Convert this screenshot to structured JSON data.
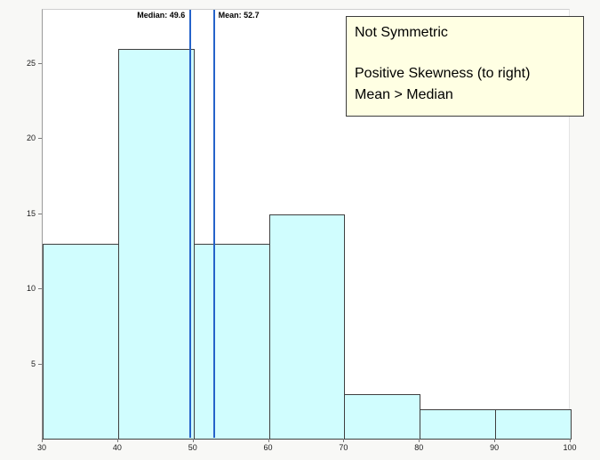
{
  "chart_data": {
    "type": "bar",
    "subtype": "histogram",
    "title": "",
    "xlabel": "",
    "ylabel": "",
    "bin_edges": [
      30,
      40,
      50,
      60,
      70,
      80,
      90,
      100
    ],
    "counts": [
      13,
      26,
      13,
      15,
      3,
      2,
      2
    ],
    "x_ticks": [
      30,
      40,
      50,
      60,
      70,
      80,
      90,
      100
    ],
    "y_ticks": [
      5,
      10,
      15,
      20,
      25
    ],
    "x_range": [
      30,
      100
    ],
    "y_range": [
      0,
      28.6
    ],
    "grid": false,
    "bar_fill": "#d0fdfe",
    "bar_border": "#3f3f3f",
    "reference_lines": [
      {
        "name": "median",
        "label": "Median: 49.6",
        "value": 49.6,
        "color": "#2563c9",
        "label_side": "left"
      },
      {
        "name": "mean",
        "label": "Mean: 52.7",
        "value": 52.7,
        "color": "#2563c9",
        "label_side": "right"
      }
    ]
  },
  "annotation": {
    "bg": "#ffffe3",
    "lines": [
      "Not Symmetric",
      "",
      "Positive Skewness (to right)",
      "Mean > Median"
    ]
  }
}
